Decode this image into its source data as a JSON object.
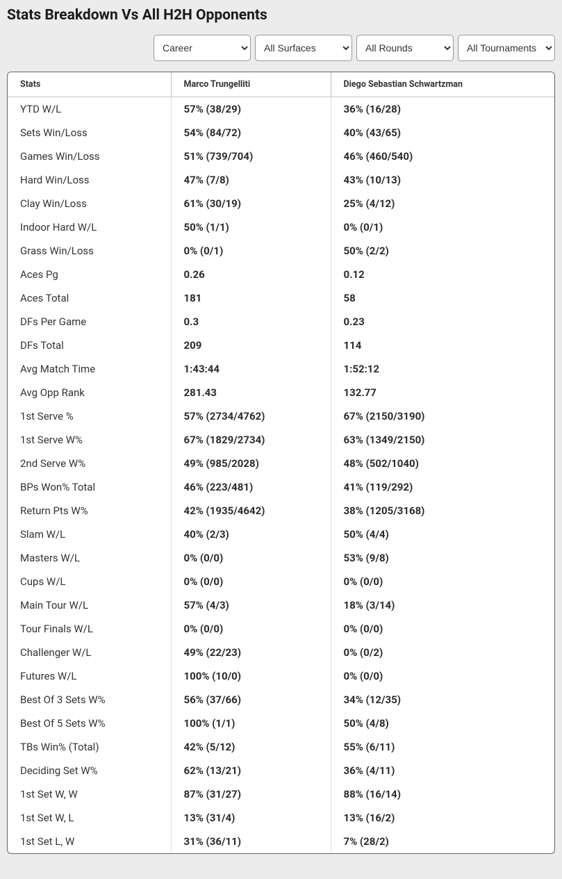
{
  "title": "Stats Breakdown Vs All H2H Opponents",
  "filters": {
    "period": {
      "selected": "Career"
    },
    "surface": {
      "selected": "All Surfaces"
    },
    "round": {
      "selected": "All Rounds"
    },
    "tournament": {
      "selected": "All Tournaments"
    }
  },
  "table": {
    "headers": {
      "stats": "Stats",
      "p1": "Marco Trungelliti",
      "p2": "Diego Sebastian Schwartzman"
    },
    "rows": [
      {
        "s": "YTD W/L",
        "p1": "57% (38/29)",
        "p2": "36% (16/28)"
      },
      {
        "s": "Sets Win/Loss",
        "p1": "54% (84/72)",
        "p2": "40% (43/65)"
      },
      {
        "s": "Games Win/Loss",
        "p1": "51% (739/704)",
        "p2": "46% (460/540)"
      },
      {
        "s": "Hard Win/Loss",
        "p1": "47% (7/8)",
        "p2": "43% (10/13)"
      },
      {
        "s": "Clay Win/Loss",
        "p1": "61% (30/19)",
        "p2": "25% (4/12)"
      },
      {
        "s": "Indoor Hard W/L",
        "p1": "50% (1/1)",
        "p2": "0% (0/1)"
      },
      {
        "s": "Grass Win/Loss",
        "p1": "0% (0/1)",
        "p2": "50% (2/2)"
      },
      {
        "s": "Aces Pg",
        "p1": "0.26",
        "p2": "0.12"
      },
      {
        "s": "Aces Total",
        "p1": "181",
        "p2": "58"
      },
      {
        "s": "DFs Per Game",
        "p1": "0.3",
        "p2": "0.23"
      },
      {
        "s": "DFs Total",
        "p1": "209",
        "p2": "114"
      },
      {
        "s": "Avg Match Time",
        "p1": "1:43:44",
        "p2": "1:52:12"
      },
      {
        "s": "Avg Opp Rank",
        "p1": "281.43",
        "p2": "132.77"
      },
      {
        "s": "1st Serve %",
        "p1": "57% (2734/4762)",
        "p2": "67% (2150/3190)"
      },
      {
        "s": "1st Serve W%",
        "p1": "67% (1829/2734)",
        "p2": "63% (1349/2150)"
      },
      {
        "s": "2nd Serve W%",
        "p1": "49% (985/2028)",
        "p2": "48% (502/1040)"
      },
      {
        "s": "BPs Won% Total",
        "p1": "46% (223/481)",
        "p2": "41% (119/292)"
      },
      {
        "s": "Return Pts W%",
        "p1": "42% (1935/4642)",
        "p2": "38% (1205/3168)"
      },
      {
        "s": "Slam W/L",
        "p1": "40% (2/3)",
        "p2": "50% (4/4)"
      },
      {
        "s": "Masters W/L",
        "p1": "0% (0/0)",
        "p2": "53% (9/8)"
      },
      {
        "s": "Cups W/L",
        "p1": "0% (0/0)",
        "p2": "0% (0/0)"
      },
      {
        "s": "Main Tour W/L",
        "p1": "57% (4/3)",
        "p2": "18% (3/14)"
      },
      {
        "s": "Tour Finals W/L",
        "p1": "0% (0/0)",
        "p2": "0% (0/0)"
      },
      {
        "s": "Challenger W/L",
        "p1": "49% (22/23)",
        "p2": "0% (0/2)"
      },
      {
        "s": "Futures W/L",
        "p1": "100% (10/0)",
        "p2": "0% (0/0)"
      },
      {
        "s": "Best Of 3 Sets W%",
        "p1": "56% (37/66)",
        "p2": "34% (12/35)"
      },
      {
        "s": "Best Of 5 Sets W%",
        "p1": "100% (1/1)",
        "p2": "50% (4/8)"
      },
      {
        "s": "TBs Win% (Total)",
        "p1": "42% (5/12)",
        "p2": "55% (6/11)"
      },
      {
        "s": "Deciding Set W%",
        "p1": "62% (13/21)",
        "p2": "36% (4/11)"
      },
      {
        "s": "1st Set W, W",
        "p1": "87% (31/27)",
        "p2": "88% (16/14)"
      },
      {
        "s": "1st Set W, L",
        "p1": "13% (31/4)",
        "p2": "13% (16/2)"
      },
      {
        "s": "1st Set L, W",
        "p1": "31% (36/11)",
        "p2": "7% (28/2)"
      }
    ]
  }
}
